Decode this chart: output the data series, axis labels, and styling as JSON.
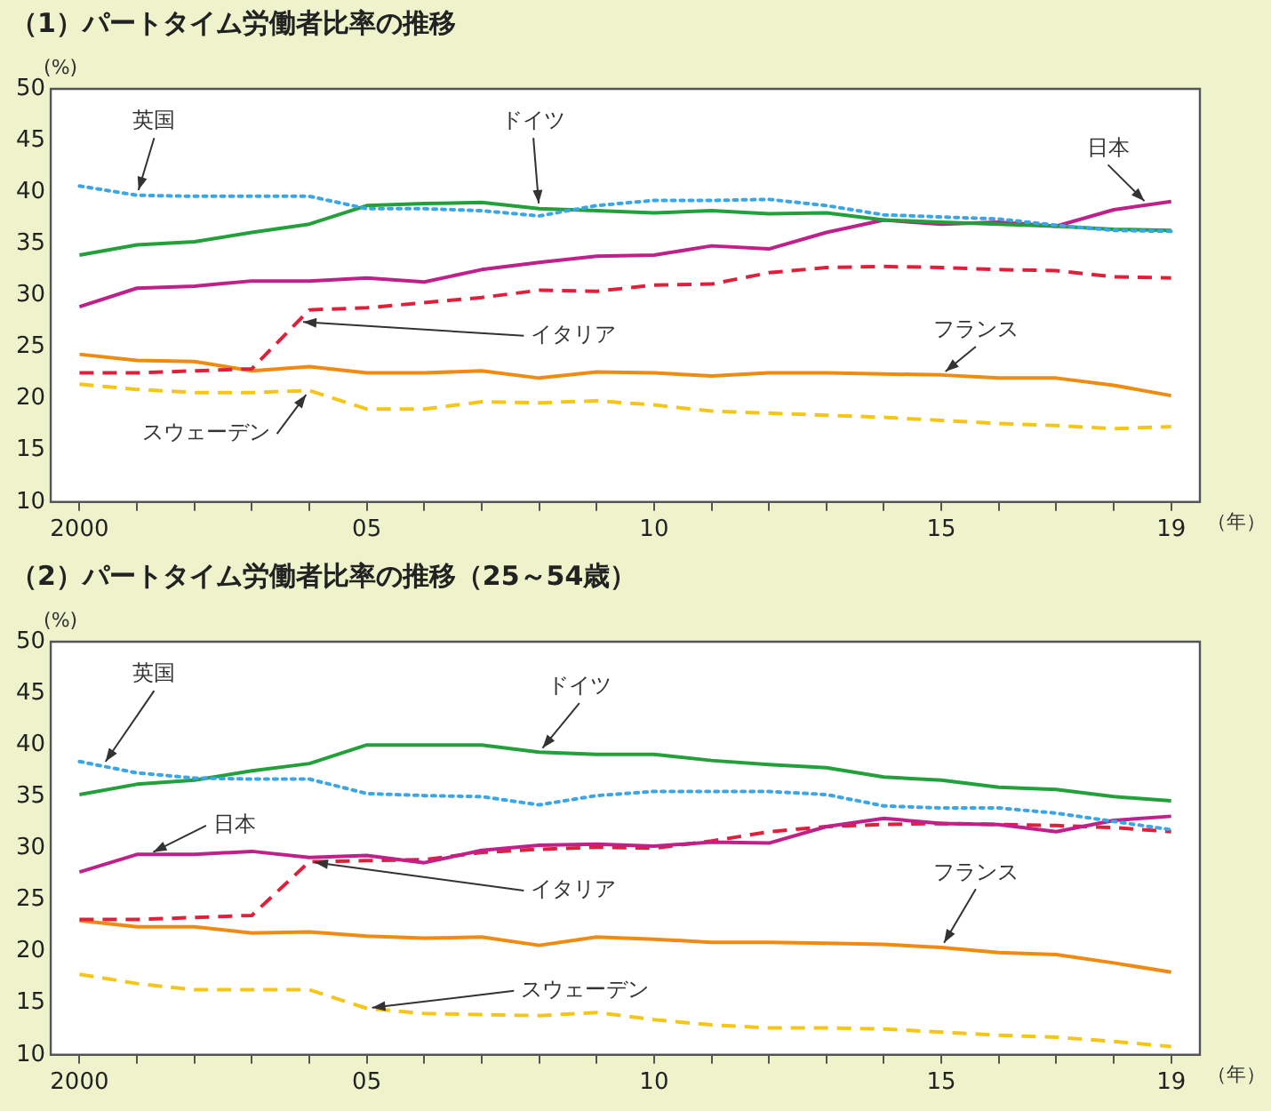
{
  "chart_data": [
    {
      "type": "line",
      "title": "（1）パートタイム労働者比率の推移",
      "xlabel": "（年）",
      "ylabel": "(%)",
      "x": [
        2000,
        2001,
        2002,
        2003,
        2004,
        2005,
        2006,
        2007,
        2008,
        2009,
        2010,
        2011,
        2012,
        2013,
        2014,
        2015,
        2016,
        2017,
        2018,
        2019
      ],
      "xlim": [
        1999.5,
        2019.5
      ],
      "xticks": [
        {
          "value": 2000,
          "label": "2000"
        },
        {
          "value": 2001,
          "label": null
        },
        {
          "value": 2002,
          "label": null
        },
        {
          "value": 2003,
          "label": null
        },
        {
          "value": 2004,
          "label": null
        },
        {
          "value": 2005,
          "label": "05"
        },
        {
          "value": 2006,
          "label": null
        },
        {
          "value": 2007,
          "label": null
        },
        {
          "value": 2008,
          "label": null
        },
        {
          "value": 2009,
          "label": null
        },
        {
          "value": 2010,
          "label": "10"
        },
        {
          "value": 2011,
          "label": null
        },
        {
          "value": 2012,
          "label": null
        },
        {
          "value": 2013,
          "label": null
        },
        {
          "value": 2014,
          "label": null
        },
        {
          "value": 2015,
          "label": "15"
        },
        {
          "value": 2016,
          "label": null
        },
        {
          "value": 2017,
          "label": null
        },
        {
          "value": 2018,
          "label": null
        },
        {
          "value": 2019,
          "label": "19"
        }
      ],
      "ylim": [
        10,
        50
      ],
      "yticks": [
        10,
        15,
        20,
        25,
        30,
        35,
        40,
        45,
        50
      ],
      "grid": false,
      "legend": false,
      "marker": "none",
      "series": [
        {
          "name": "英国",
          "color": "#3aa6e8",
          "line_style": "dotted",
          "values": [
            40.6,
            39.7,
            39.6,
            39.6,
            39.6,
            38.4,
            38.4,
            38.2,
            37.7,
            38.7,
            39.2,
            39.2,
            39.3,
            38.7,
            37.8,
            37.6,
            37.4,
            36.8,
            36.3,
            36.2
          ]
        },
        {
          "name": "ドイツ",
          "color": "#22a03a",
          "line_style": "solid",
          "values": [
            33.9,
            34.9,
            35.2,
            36.1,
            36.9,
            38.7,
            38.9,
            39.0,
            38.4,
            38.2,
            38.0,
            38.2,
            37.9,
            38.0,
            37.3,
            37.1,
            36.9,
            36.7,
            36.4,
            36.3
          ]
        },
        {
          "name": "日本",
          "color": "#c0208a",
          "line_style": "solid",
          "values": [
            28.9,
            30.7,
            30.9,
            31.4,
            31.4,
            31.7,
            31.3,
            32.5,
            33.2,
            33.8,
            33.9,
            34.8,
            34.5,
            36.1,
            37.3,
            36.9,
            37.1,
            36.7,
            38.3,
            39.1
          ]
        },
        {
          "name": "イタリア",
          "color": "#e0203a",
          "line_style": "dashed",
          "values": [
            22.5,
            22.5,
            22.7,
            22.9,
            28.6,
            28.8,
            29.3,
            29.8,
            30.5,
            30.4,
            31.0,
            31.1,
            32.2,
            32.7,
            32.8,
            32.7,
            32.5,
            32.4,
            31.8,
            31.7
          ]
        },
        {
          "name": "フランス",
          "color": "#f08a10",
          "line_style": "solid",
          "values": [
            24.3,
            23.7,
            23.6,
            22.7,
            23.1,
            22.5,
            22.5,
            22.7,
            22.0,
            22.6,
            22.5,
            22.2,
            22.5,
            22.5,
            22.4,
            22.3,
            22.0,
            22.0,
            21.3,
            20.3
          ]
        },
        {
          "name": "スウェーデン",
          "color": "#f5c518",
          "line_style": "dashed",
          "values": [
            21.4,
            20.9,
            20.6,
            20.6,
            20.8,
            19.0,
            19.0,
            19.7,
            19.6,
            19.8,
            19.4,
            18.8,
            18.6,
            18.4,
            18.2,
            17.9,
            17.6,
            17.4,
            17.1,
            17.3
          ]
        }
      ]
    },
    {
      "type": "line",
      "title": "（2）パートタイム労働者比率の推移（25～54歳）",
      "xlabel": "（年）",
      "ylabel": "(%)",
      "x": [
        2000,
        2001,
        2002,
        2003,
        2004,
        2005,
        2006,
        2007,
        2008,
        2009,
        2010,
        2011,
        2012,
        2013,
        2014,
        2015,
        2016,
        2017,
        2018,
        2019
      ],
      "xlim": [
        1999.5,
        2019.5
      ],
      "xticks": [
        {
          "value": 2000,
          "label": "2000"
        },
        {
          "value": 2001,
          "label": null
        },
        {
          "value": 2002,
          "label": null
        },
        {
          "value": 2003,
          "label": null
        },
        {
          "value": 2004,
          "label": null
        },
        {
          "value": 2005,
          "label": "05"
        },
        {
          "value": 2006,
          "label": null
        },
        {
          "value": 2007,
          "label": null
        },
        {
          "value": 2008,
          "label": null
        },
        {
          "value": 2009,
          "label": null
        },
        {
          "value": 2010,
          "label": "10"
        },
        {
          "value": 2011,
          "label": null
        },
        {
          "value": 2012,
          "label": null
        },
        {
          "value": 2013,
          "label": null
        },
        {
          "value": 2014,
          "label": null
        },
        {
          "value": 2015,
          "label": "15"
        },
        {
          "value": 2016,
          "label": null
        },
        {
          "value": 2017,
          "label": null
        },
        {
          "value": 2018,
          "label": null
        },
        {
          "value": 2019,
          "label": "19"
        }
      ],
      "ylim": [
        10,
        50
      ],
      "yticks": [
        10,
        15,
        20,
        25,
        30,
        35,
        40,
        45,
        50
      ],
      "grid": false,
      "legend": false,
      "marker": "none",
      "series": [
        {
          "name": "英国",
          "color": "#3aa6e8",
          "line_style": "dotted",
          "values": [
            38.4,
            37.3,
            36.8,
            36.7,
            36.7,
            35.3,
            35.1,
            35.0,
            34.2,
            35.1,
            35.5,
            35.5,
            35.5,
            35.2,
            34.1,
            33.9,
            33.9,
            33.4,
            32.6,
            31.8
          ]
        },
        {
          "name": "ドイツ",
          "color": "#22a03a",
          "line_style": "solid",
          "values": [
            35.2,
            36.2,
            36.6,
            37.5,
            38.2,
            40.0,
            40.0,
            40.0,
            39.3,
            39.1,
            39.1,
            38.5,
            38.1,
            37.8,
            36.9,
            36.6,
            35.9,
            35.7,
            35.0,
            34.6
          ]
        },
        {
          "name": "日本",
          "color": "#c0208a",
          "line_style": "solid",
          "values": [
            27.7,
            29.4,
            29.4,
            29.7,
            29.1,
            29.3,
            28.6,
            29.8,
            30.3,
            30.4,
            30.2,
            30.6,
            30.5,
            32.1,
            32.9,
            32.4,
            32.3,
            31.6,
            32.7,
            33.1
          ]
        },
        {
          "name": "イタリア",
          "color": "#e0203a",
          "line_style": "dashed",
          "values": [
            23.1,
            23.1,
            23.3,
            23.5,
            28.7,
            28.8,
            28.9,
            29.6,
            29.9,
            30.1,
            30.0,
            30.7,
            31.6,
            32.1,
            32.3,
            32.4,
            32.3,
            32.2,
            32.0,
            31.6
          ]
        },
        {
          "name": "フランス",
          "color": "#f08a10",
          "line_style": "solid",
          "values": [
            23.0,
            22.4,
            22.4,
            21.8,
            21.9,
            21.5,
            21.3,
            21.4,
            20.6,
            21.4,
            21.2,
            20.9,
            20.9,
            20.8,
            20.7,
            20.4,
            19.9,
            19.7,
            18.9,
            18.0
          ]
        },
        {
          "name": "スウェーデン",
          "color": "#f5c518",
          "line_style": "dashed",
          "values": [
            17.8,
            16.9,
            16.3,
            16.3,
            16.3,
            14.5,
            14.0,
            13.9,
            13.8,
            14.1,
            13.4,
            12.9,
            12.6,
            12.6,
            12.5,
            12.2,
            11.9,
            11.7,
            11.3,
            10.8
          ]
        }
      ]
    }
  ]
}
